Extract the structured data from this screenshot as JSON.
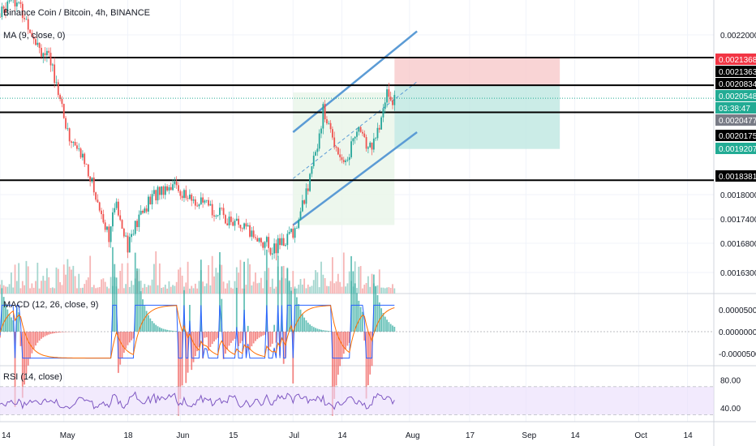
{
  "header": {
    "symbol_title": "Binance Coin / Bitcoin, 4h, BINANCE",
    "ma_legend": "MA (9, close, 0)",
    "macd_legend": "MACD (12, 26, close, 9)",
    "rsi_legend": "RSI (14, close)"
  },
  "price_axis": {
    "ticks": [
      "0.0022000",
      "0.0018000",
      "0.0017400",
      "0.0016800",
      "0.0016300"
    ],
    "tick_values": [
      0.0022,
      0.0018,
      0.00174,
      0.00168,
      0.00163
    ]
  },
  "price_tags": [
    {
      "label": "0.0021368",
      "value": 0.0021368,
      "color": "#f23645"
    },
    {
      "label": "0.0021363",
      "value": 0.0021363,
      "color": "#000000"
    },
    {
      "label": "0.0020834",
      "value": 0.0020834,
      "color": "#000000"
    },
    {
      "label": "0.0020548",
      "value": 0.0020548,
      "color": "#22ab94"
    },
    {
      "label": "03:38:47",
      "value": 0.0020515,
      "color": "#22ab94"
    },
    {
      "label": "0.0020477",
      "value": 0.0020477,
      "color": "#787b86"
    },
    {
      "label": "0.0020175",
      "value": 0.0020175,
      "color": "#000000"
    },
    {
      "label": "0.0019207",
      "value": 0.0019207,
      "color": "#22ab94"
    },
    {
      "label": "0.0018381",
      "value": 0.0018381,
      "color": "#000000"
    }
  ],
  "horizontal_levels": [
    0.0021368,
    0.0020834,
    0.0020175,
    0.0018381
  ],
  "macd_axis": {
    "ticks": [
      "0.0000500",
      "0.0000000",
      "-0.0000500"
    ],
    "tick_values": [
      5e-05,
      0,
      -5e-05
    ]
  },
  "rsi_axis": {
    "ticks": [
      "80.00",
      "40.00"
    ],
    "tick_values": [
      80,
      40
    ]
  },
  "time_axis": {
    "labels": [
      "14",
      "May",
      "18",
      "Jun",
      "15",
      "Jul",
      "14",
      "Aug",
      "17",
      "Sep",
      "14",
      "Oct",
      "14"
    ]
  },
  "chart_data": {
    "type": "candlestick",
    "title": "Binance Coin / Bitcoin, 4h, BINANCE",
    "price_range": [
      0.00158,
      0.00232
    ],
    "x_range": [
      "2019-04-14",
      "2019-10-21"
    ],
    "price_path": [
      {
        "date": "2019-04-14",
        "price": 0.00225
      },
      {
        "date": "2019-04-17",
        "price": 0.00232
      },
      {
        "date": "2019-04-21",
        "price": 0.00224
      },
      {
        "date": "2019-04-25",
        "price": 0.00216
      },
      {
        "date": "2019-04-29",
        "price": 0.0021
      },
      {
        "date": "2019-05-02",
        "price": 0.00196
      },
      {
        "date": "2019-05-07",
        "price": 0.00188
      },
      {
        "date": "2019-05-10",
        "price": 0.00178
      },
      {
        "date": "2019-05-13",
        "price": 0.0017
      },
      {
        "date": "2019-05-15",
        "price": 0.00178
      },
      {
        "date": "2019-05-18",
        "price": 0.00168
      },
      {
        "date": "2019-05-22",
        "price": 0.00176
      },
      {
        "date": "2019-05-26",
        "price": 0.00181
      },
      {
        "date": "2019-05-30",
        "price": 0.00183
      },
      {
        "date": "2019-06-03",
        "price": 0.00179
      },
      {
        "date": "2019-06-08",
        "price": 0.00177
      },
      {
        "date": "2019-06-12",
        "price": 0.00175
      },
      {
        "date": "2019-06-17",
        "price": 0.00172
      },
      {
        "date": "2019-06-22",
        "price": 0.00169
      },
      {
        "date": "2019-06-26",
        "price": 0.00167
      },
      {
        "date": "2019-06-29",
        "price": 0.00169
      },
      {
        "date": "2019-07-02",
        "price": 0.00172
      },
      {
        "date": "2019-07-06",
        "price": 0.00186
      },
      {
        "date": "2019-07-09",
        "price": 0.00202
      },
      {
        "date": "2019-07-12",
        "price": 0.00194
      },
      {
        "date": "2019-07-15",
        "price": 0.00188
      },
      {
        "date": "2019-07-18",
        "price": 0.00198
      },
      {
        "date": "2019-07-21",
        "price": 0.00192
      },
      {
        "date": "2019-07-24",
        "price": 0.00197
      },
      {
        "date": "2019-07-26",
        "price": 0.00207
      },
      {
        "date": "2019-07-28",
        "price": 0.00205
      }
    ],
    "rising_channel": {
      "upper": [
        {
          "date": "2019-07-01",
          "price": 0.001965
        },
        {
          "date": "2019-08-03",
          "price": 0.00221
        }
      ],
      "lower": [
        {
          "date": "2019-07-01",
          "price": 0.001725
        },
        {
          "date": "2019-08-03",
          "price": 0.001965
        }
      ]
    },
    "position": {
      "type": "short",
      "start": "2019-07-28",
      "end": "2019-09-10",
      "stop": 0.0021368,
      "entry": 0.0020834,
      "target": 0.0019207
    },
    "volume_profile": "shown",
    "macd": {
      "range": [
        -7e-05,
        7e-05
      ]
    },
    "rsi": {
      "range": [
        20,
        100
      ],
      "band_upper": 70,
      "band_lower": 30
    }
  }
}
